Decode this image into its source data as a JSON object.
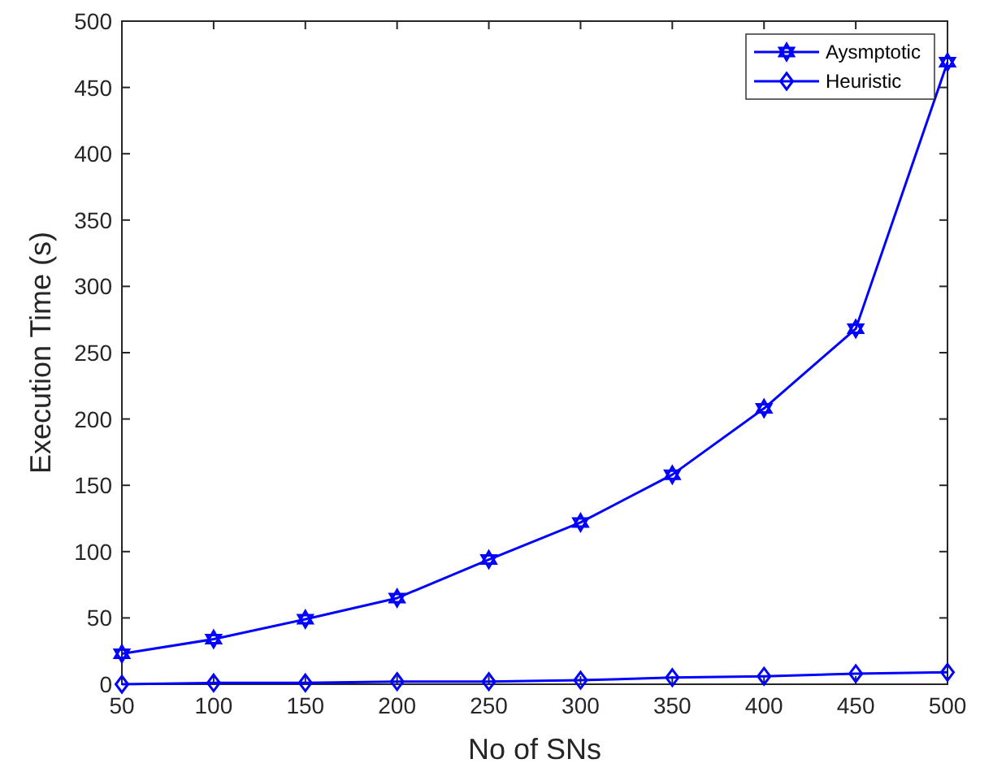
{
  "chart_data": {
    "type": "line",
    "xlabel": "No of SNs",
    "ylabel": "Execution Time (s)",
    "x": [
      50,
      100,
      150,
      200,
      250,
      300,
      350,
      400,
      450,
      500
    ],
    "series": [
      {
        "name": "Aysmptotic",
        "color": "#0000ff",
        "marker": "star",
        "values": [
          23,
          34,
          49,
          65,
          94,
          122,
          158,
          208,
          268,
          469
        ]
      },
      {
        "name": "Heuristic",
        "color": "#0000ff",
        "marker": "diamond",
        "values": [
          0,
          1,
          1,
          2,
          2,
          3,
          5,
          6,
          8,
          9
        ]
      }
    ],
    "xlim": [
      50,
      500
    ],
    "xticks": [
      50,
      100,
      150,
      200,
      250,
      300,
      350,
      400,
      450,
      500
    ],
    "ylim": [
      0,
      500
    ],
    "yticks": [
      0,
      50,
      100,
      150,
      200,
      250,
      300,
      350,
      400,
      450,
      500
    ],
    "grid": false,
    "legend": "top right",
    "line_style": "solid"
  }
}
